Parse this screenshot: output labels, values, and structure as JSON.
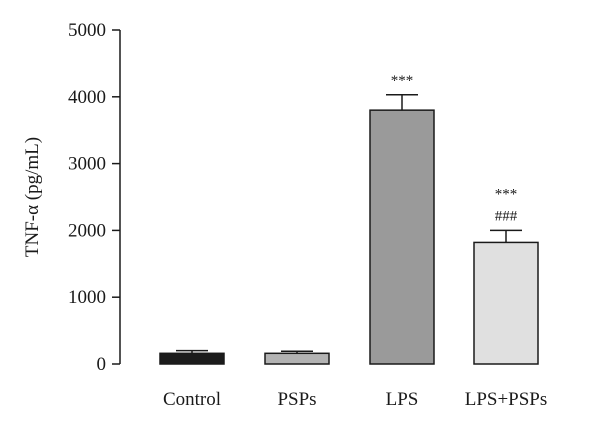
{
  "chart_data": {
    "type": "bar",
    "title": "",
    "xlabel": "",
    "ylabel": "TNF-α (pg/mL)",
    "ylim": [
      0,
      5000
    ],
    "yticks": [
      0,
      1000,
      2000,
      3000,
      4000,
      5000
    ],
    "ytick_labels": [
      "0",
      "1000",
      "2000",
      "3000",
      "4000",
      "5000"
    ],
    "grid": false,
    "categories": [
      "Control",
      "PSPs",
      "LPS",
      "LPS+PSPs"
    ],
    "values": [
      160,
      160,
      3800,
      1820
    ],
    "errors": [
      40,
      30,
      230,
      180
    ],
    "colors": [
      "#1c1c1c",
      "#b3b3b3",
      "#9a9a9a",
      "#e0e0e0"
    ],
    "annotations": [
      [],
      [],
      [
        "***"
      ],
      [
        "***",
        "###"
      ]
    ]
  }
}
